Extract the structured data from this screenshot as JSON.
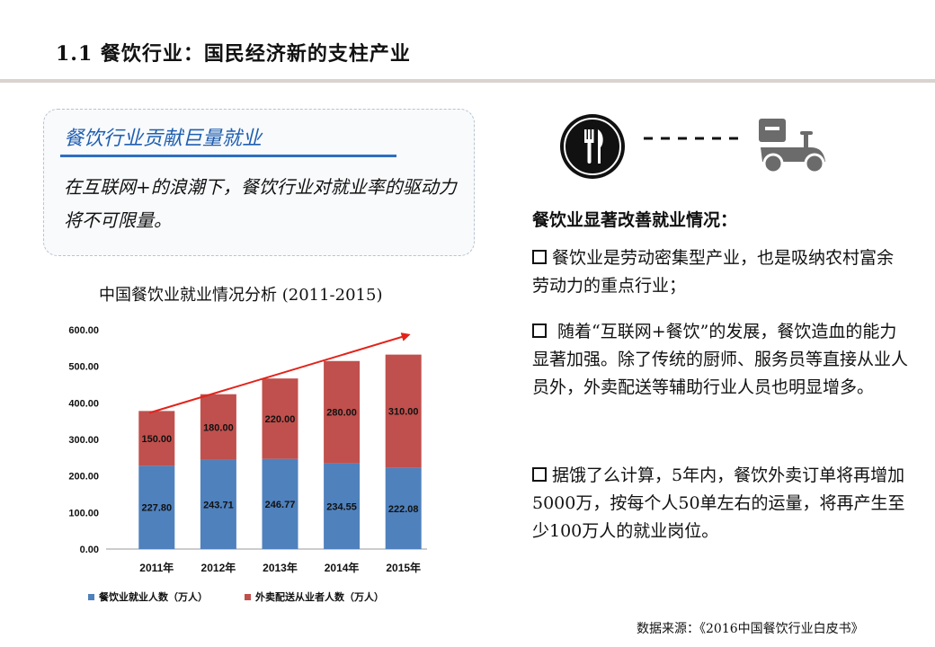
{
  "page": {
    "title": "1.1 餐饮行业：国民经济新的支柱产业",
    "callout": {
      "heading": "餐饮行业贡献巨量就业",
      "body": "在互联网+的浪潮下，餐饮行业对就业率的驱动力将不可限量。"
    },
    "right": {
      "heading": "餐饮业显著改善就业情况：",
      "bullets": [
        "餐饮业是劳动密集型产业，也是吸纳农村富余劳动力的重点行业；",
        " 随着“互联网+餐饮”的发展，餐饮造血的能力显著加强。除了传统的厨师、服务员等直接从业人员外，外卖配送等辅助行业人员也明显增多。",
        "据饿了么计算，5年内，餐饮外卖订单将再增加5000万，按每个人50单左右的运量，将再产生至少100万人的就业岗位。"
      ]
    },
    "source": "数据来源：《2016中国餐饮行业白皮书》",
    "icons": [
      "fork-knife-icon",
      "delivery-scooter-icon"
    ]
  },
  "chart_data": {
    "type": "bar",
    "stacked": true,
    "title": "中国餐饮业就业情况分析 (2011-2015)",
    "categories": [
      "2011年",
      "2012年",
      "2013年",
      "2014年",
      "2015年"
    ],
    "series": [
      {
        "name": "餐饮业就业人数（万人）",
        "values": [
          227.8,
          243.71,
          246.77,
          234.55,
          222.08
        ],
        "color": "#4f81bd"
      },
      {
        "name": "外卖配送从业者人数（万人）",
        "values": [
          150.0,
          180.0,
          220.0,
          280.0,
          310.0
        ],
        "color": "#c0504d"
      }
    ],
    "data_labels": [
      [
        "227.80",
        "243.71",
        "246.77",
        "234.55",
        "222.08"
      ],
      [
        "150.00",
        "180.00",
        "220.00",
        "280.00",
        "310.00"
      ]
    ],
    "yticks": [
      "0.00",
      "100.00",
      "200.00",
      "300.00",
      "400.00",
      "500.00",
      "600.00"
    ],
    "ylim": [
      0,
      600
    ],
    "grid": false,
    "legend": "bottom",
    "annotation": "trend-arrow",
    "arrow_color": "#e2231a"
  }
}
